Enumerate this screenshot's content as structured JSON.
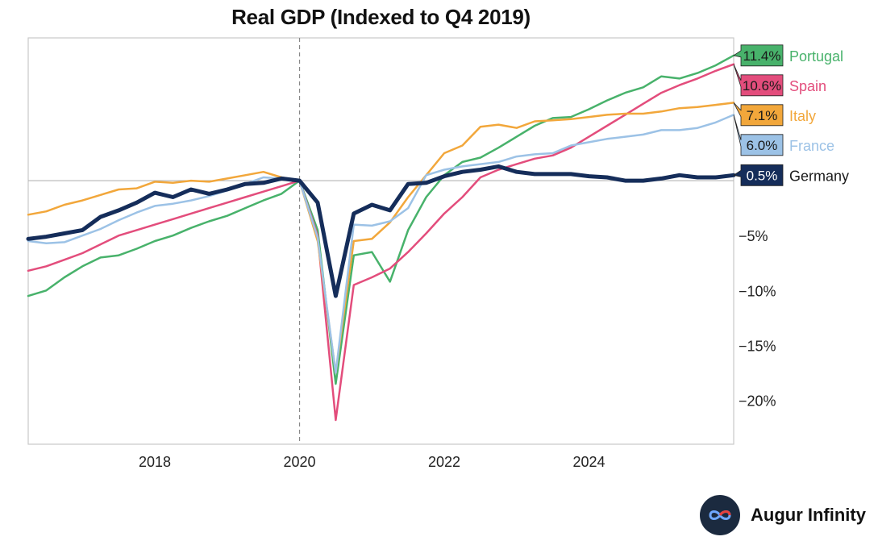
{
  "brand": {
    "name": "Augur Infinity",
    "logo_icon": "infinity-icon"
  },
  "chart_data": {
    "type": "line",
    "title": "Real GDP (Indexed to Q4 2019)",
    "xlabel": "",
    "ylabel": "",
    "xlim": [
      2016.25,
      2026.0
    ],
    "ylim": [
      -24,
      13
    ],
    "reference_vline": 2020.0,
    "reference_hline": 0,
    "x_ticks": [
      {
        "value": 2018,
        "label": "2018"
      },
      {
        "value": 2020,
        "label": "2020"
      },
      {
        "value": 2022,
        "label": "2022"
      },
      {
        "value": 2024,
        "label": "2024"
      }
    ],
    "y_ticks": [
      {
        "value": -5,
        "label": "−5%"
      },
      {
        "value": -10,
        "label": "−10%"
      },
      {
        "value": -15,
        "label": "−15%"
      },
      {
        "value": -20,
        "label": "−20%"
      }
    ],
    "x": [
      2016.25,
      2016.5,
      2016.75,
      2017.0,
      2017.25,
      2017.5,
      2017.75,
      2018.0,
      2018.25,
      2018.5,
      2018.75,
      2019.0,
      2019.25,
      2019.5,
      2019.75,
      2020.0,
      2020.25,
      2020.5,
      2020.75,
      2021.0,
      2021.25,
      2021.5,
      2021.75,
      2022.0,
      2022.25,
      2022.5,
      2022.75,
      2023.0,
      2023.25,
      2023.5,
      2023.75,
      2024.0,
      2024.25,
      2024.5,
      2024.75,
      2025.0,
      2025.25,
      2025.5,
      2025.75,
      2026.0
    ],
    "series": [
      {
        "name": "Portugal",
        "end_label": "11.4%",
        "color": "#48b26b",
        "line_width": 2.5,
        "values": [
          -10.5,
          -10.0,
          -8.8,
          -7.8,
          -7.0,
          -6.8,
          -6.2,
          -5.5,
          -5.0,
          -4.3,
          -3.7,
          -3.2,
          -2.5,
          -1.8,
          -1.2,
          0,
          -4.5,
          -18.5,
          -6.8,
          -6.5,
          -9.2,
          -4.5,
          -1.5,
          0.5,
          1.7,
          2.1,
          3.0,
          4.0,
          5.0,
          5.7,
          5.8,
          6.5,
          7.3,
          8.0,
          8.5,
          9.5,
          9.3,
          9.8,
          10.5,
          11.4
        ]
      },
      {
        "name": "Spain",
        "end_label": "10.6%",
        "color": "#e34d7c",
        "line_width": 2.5,
        "values": [
          -8.2,
          -7.8,
          -7.2,
          -6.6,
          -5.8,
          -5.0,
          -4.5,
          -4.0,
          -3.5,
          -3.0,
          -2.5,
          -2.0,
          -1.5,
          -1.0,
          -0.5,
          0,
          -5.0,
          -21.8,
          -9.5,
          -8.8,
          -8.0,
          -6.5,
          -4.8,
          -3.0,
          -1.5,
          0.3,
          1.0,
          1.5,
          2.0,
          2.3,
          3.0,
          4.0,
          5.0,
          6.0,
          7.0,
          8.0,
          8.7,
          9.3,
          10.0,
          10.6
        ]
      },
      {
        "name": "Italy",
        "end_label": "7.1%",
        "color": "#f2a73b",
        "line_width": 2.5,
        "values": [
          -3.1,
          -2.8,
          -2.2,
          -1.8,
          -1.3,
          -0.8,
          -0.7,
          -0.1,
          -0.2,
          0.0,
          -0.1,
          0.2,
          0.5,
          0.8,
          0.3,
          0,
          -5.5,
          -17.5,
          -5.5,
          -5.3,
          -3.8,
          -1.5,
          0.5,
          2.5,
          3.2,
          4.9,
          5.1,
          4.8,
          5.4,
          5.5,
          5.6,
          5.8,
          6.0,
          6.1,
          6.1,
          6.3,
          6.6,
          6.7,
          6.9,
          7.1
        ]
      },
      {
        "name": "France",
        "end_label": "6.0%",
        "color": "#9cc2e6",
        "line_width": 2.5,
        "values": [
          -5.5,
          -5.7,
          -5.6,
          -5.0,
          -4.4,
          -3.6,
          -2.9,
          -2.3,
          -2.1,
          -1.8,
          -1.4,
          -0.9,
          -0.3,
          0.3,
          0.2,
          0,
          -5.2,
          -17.5,
          -4.0,
          -4.1,
          -3.7,
          -2.5,
          0.5,
          1.0,
          1.3,
          1.5,
          1.7,
          2.2,
          2.4,
          2.5,
          3.2,
          3.5,
          3.8,
          4.0,
          4.2,
          4.6,
          4.6,
          4.8,
          5.3,
          6.0
        ]
      },
      {
        "name": "Germany",
        "end_label": "0.5%",
        "color": "#152d5a",
        "line_width": 5,
        "values": [
          -5.3,
          -5.1,
          -4.8,
          -4.5,
          -3.3,
          -2.7,
          -2.0,
          -1.1,
          -1.5,
          -0.8,
          -1.2,
          -0.8,
          -0.3,
          -0.2,
          0.2,
          0,
          -2.0,
          -10.5,
          -3.0,
          -2.2,
          -2.7,
          -0.3,
          -0.2,
          0.4,
          0.8,
          1.0,
          1.3,
          0.8,
          0.6,
          0.6,
          0.6,
          0.4,
          0.3,
          0.0,
          0.0,
          0.2,
          0.5,
          0.3,
          0.3,
          0.5
        ]
      }
    ]
  }
}
